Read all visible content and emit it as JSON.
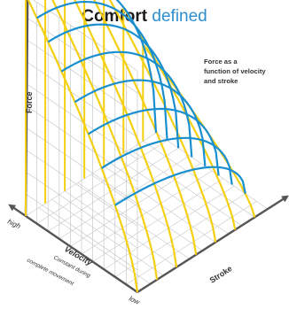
{
  "title": {
    "bold": "Comfort",
    "light": "defined"
  },
  "caption": [
    "Force as a",
    "function of velocity",
    "and stroke"
  ],
  "axes": {
    "force": "Force",
    "velocity": "Velocity",
    "velocity_note_1": "Constant during",
    "velocity_note_2": "complete movement",
    "stroke": "Stroke",
    "high": "high",
    "low": "low"
  },
  "colors": {
    "velocity_lines": "#1a8fd0",
    "stroke_lines": "#f5cf12",
    "grid": "#c8c8c8",
    "axis": "#555555",
    "title_accent": "#2e8fcf"
  }
}
